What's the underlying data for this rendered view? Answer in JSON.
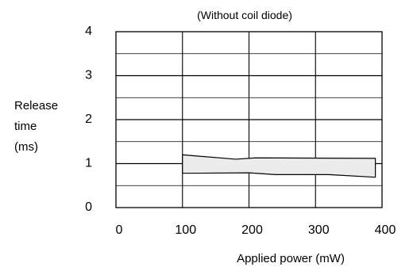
{
  "chart_data": {
    "type": "area",
    "title": "(Without coil diode)",
    "xlabel": "Applied power (mW)",
    "ylabel": [
      "Release",
      "time",
      "(ms)"
    ],
    "xlim": [
      0,
      400
    ],
    "ylim": [
      0,
      4
    ],
    "x_ticks": [
      "0",
      "100",
      "200",
      "300",
      "400"
    ],
    "y_ticks": [
      "0",
      "1",
      "2",
      "3",
      "4"
    ],
    "grid": true,
    "minor_y_grid_step": 0.5,
    "band": {
      "upper": [
        {
          "x": 100,
          "y": 1.2
        },
        {
          "x": 180,
          "y": 1.1
        },
        {
          "x": 210,
          "y": 1.13
        },
        {
          "x": 390,
          "y": 1.12
        }
      ],
      "lower": [
        {
          "x": 100,
          "y": 0.78
        },
        {
          "x": 200,
          "y": 0.79
        },
        {
          "x": 240,
          "y": 0.75
        },
        {
          "x": 320,
          "y": 0.75
        },
        {
          "x": 390,
          "y": 0.69
        }
      ]
    },
    "colors": {
      "band_fill": "#ececec",
      "line": "#000000"
    }
  }
}
